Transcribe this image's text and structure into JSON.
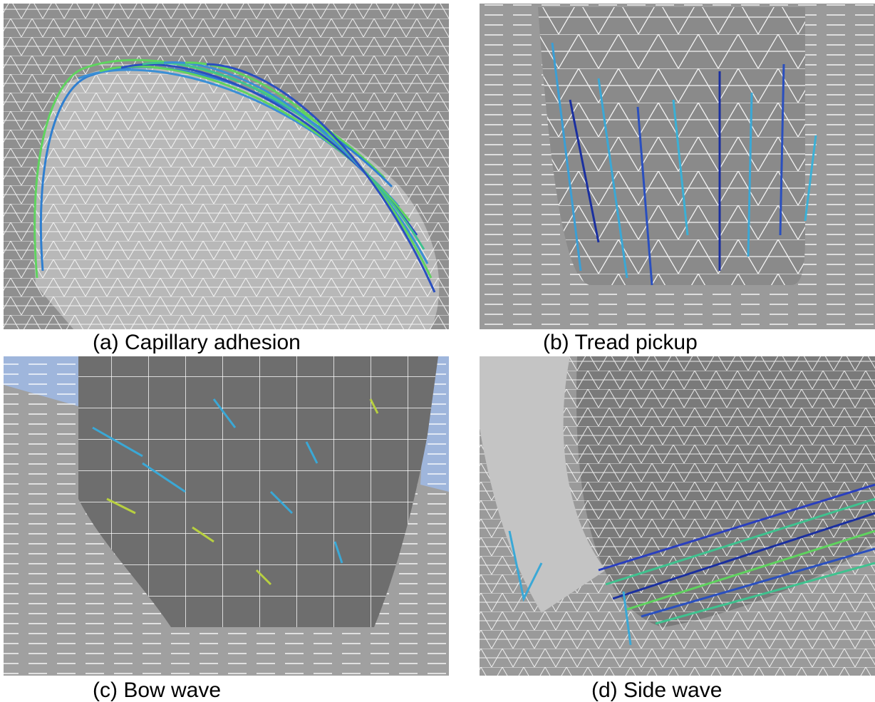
{
  "panels": [
    {
      "caption": "(a) Capillary adhesion"
    },
    {
      "caption": "(b) Tread pickup"
    },
    {
      "caption": "(c) Bow wave"
    },
    {
      "caption": "(d) Side wave"
    }
  ]
}
